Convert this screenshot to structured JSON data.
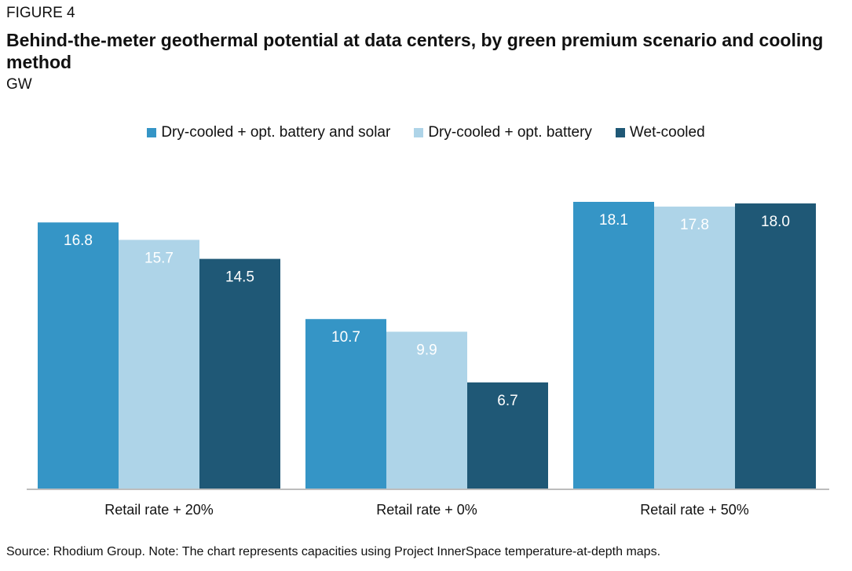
{
  "figure_label": "FIGURE 4",
  "title": "Behind-the-meter geothermal potential at data centers, by green premium scenario and cooling method",
  "unit": "GW",
  "source": "Source: Rhodium Group. Note: The chart represents capacities using Project InnerSpace temperature-at-depth maps.",
  "chart_data": {
    "type": "bar",
    "categories": [
      "Retail rate + 20%",
      "Retail rate + 0%",
      "Retail rate + 50%"
    ],
    "series": [
      {
        "name": "Dry-cooled + opt. battery and solar",
        "values": [
          16.8,
          10.7,
          18.1
        ],
        "color": "#3595c6",
        "label_color": "#ffffff"
      },
      {
        "name": "Dry-cooled + opt. battery",
        "values": [
          15.7,
          9.9,
          17.8
        ],
        "color": "#aed4e8",
        "label_color": "#ffffff"
      },
      {
        "name": "Wet-cooled",
        "values": [
          14.5,
          6.7,
          18.0
        ],
        "color": "#1f5876",
        "label_color": "#ffffff"
      }
    ],
    "ylim": [
      0,
      18.1
    ],
    "grid": false,
    "legend": "top-center"
  }
}
